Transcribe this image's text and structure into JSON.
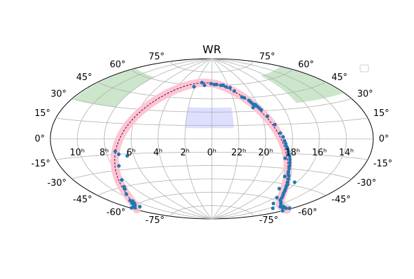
{
  "chart_data": {
    "type": "scatter",
    "projection": "aitoff",
    "title": "WR",
    "xlabel": "",
    "ylabel": "",
    "grid": true,
    "legend": {
      "placement": "upper right",
      "entries": [
        ""
      ]
    },
    "colors": {
      "points": "#1f77b4",
      "galactic_band": "#ffc0cb",
      "galactic_plane": "#4b0082",
      "field_regions": "#a8d5a8",
      "survey_region": "#c8c8ff",
      "grid": "#b0b0b0"
    },
    "lat_ticks": [
      "75°",
      "60°",
      "45°",
      "30°",
      "15°",
      "0°",
      "-15°",
      "-30°",
      "-45°",
      "-60°",
      "-75°"
    ],
    "lon_ticks": [
      "10ʰ",
      "8ʰ",
      "6ʰ",
      "4ʰ",
      "2ʰ",
      "0ʰ",
      "22ʰ",
      "20ʰ",
      "18ʰ",
      "16ʰ",
      "14ʰ"
    ],
    "lat_tick_values": [
      75,
      60,
      45,
      30,
      15,
      0,
      -15,
      -30,
      -45,
      -60,
      -75
    ],
    "lon_tick_values": [
      150,
      120,
      90,
      60,
      30,
      0,
      -30,
      -60,
      -90,
      -120,
      -150
    ],
    "survey_region": {
      "lon_min": -25,
      "lon_max": 30,
      "lat_min": 12,
      "lat_max": 35
    },
    "field_regions": [
      {
        "lon_min": 120,
        "lon_max": 178,
        "lat_min": 30,
        "lat_max": 62
      },
      {
        "lon_min": -178,
        "lon_max": -110,
        "lat_min": 35,
        "lat_max": 65
      }
    ],
    "points": [
      {
        "ra_h": 0.1,
        "dec": 62
      },
      {
        "ra_h": 23.7,
        "dec": 61
      },
      {
        "ra_h": 23.4,
        "dec": 61
      },
      {
        "ra_h": 0.9,
        "dec": 60
      },
      {
        "ra_h": 1.3,
        "dec": 63
      },
      {
        "ra_h": 2.1,
        "dec": 58
      },
      {
        "ra_h": 22.9,
        "dec": 60
      },
      {
        "ra_h": 22.6,
        "dec": 60
      },
      {
        "ra_h": 22.3,
        "dec": 58
      },
      {
        "ra_h": 21.9,
        "dec": 57
      },
      {
        "ra_h": 21.6,
        "dec": 53
      },
      {
        "ra_h": 21.1,
        "dec": 46
      },
      {
        "ra_h": 20.9,
        "dec": 45
      },
      {
        "ra_h": 20.6,
        "dec": 42
      },
      {
        "ra_h": 20.5,
        "dec": 40
      },
      {
        "ra_h": 20.4,
        "dec": 38
      },
      {
        "ra_h": 20.3,
        "dec": 36
      },
      {
        "ra_h": 20.2,
        "dec": 36
      },
      {
        "ra_h": 20.1,
        "dec": 35
      },
      {
        "ra_h": 20.2,
        "dec": 37
      },
      {
        "ra_h": 20.0,
        "dec": 33
      },
      {
        "ra_h": 19.9,
        "dec": 31
      },
      {
        "ra_h": 20.5,
        "dec": 34
      },
      {
        "ra_h": 19.6,
        "dec": 24
      },
      {
        "ra_h": 19.2,
        "dec": 15
      },
      {
        "ra_h": 18.9,
        "dec": 6
      },
      {
        "ra_h": 18.7,
        "dec": 2
      },
      {
        "ra_h": 18.6,
        "dec": -2
      },
      {
        "ra_h": 18.5,
        "dec": -5
      },
      {
        "ra_h": 18.4,
        "dec": -8
      },
      {
        "ra_h": 18.3,
        "dec": -10
      },
      {
        "ra_h": 18.2,
        "dec": -13
      },
      {
        "ra_h": 18.1,
        "dec": -16
      },
      {
        "ra_h": 18.0,
        "dec": -18
      },
      {
        "ra_h": 17.9,
        "dec": -21
      },
      {
        "ra_h": 17.8,
        "dec": -24
      },
      {
        "ra_h": 17.7,
        "dec": -27
      },
      {
        "ra_h": 17.6,
        "dec": -30
      },
      {
        "ra_h": 17.5,
        "dec": -33
      },
      {
        "ra_h": 17.4,
        "dec": -35
      },
      {
        "ra_h": 17.2,
        "dec": -37
      },
      {
        "ra_h": 17.0,
        "dec": -40
      },
      {
        "ra_h": 16.8,
        "dec": -43
      },
      {
        "ra_h": 16.6,
        "dec": -45
      },
      {
        "ra_h": 16.5,
        "dec": -47
      },
      {
        "ra_h": 16.3,
        "dec": -49
      },
      {
        "ra_h": 16.1,
        "dec": -51
      },
      {
        "ra_h": 15.9,
        "dec": -53
      },
      {
        "ra_h": 15.6,
        "dec": -55
      },
      {
        "ra_h": 15.3,
        "dec": -57
      },
      {
        "ra_h": 15.0,
        "dec": -59
      },
      {
        "ra_h": 14.6,
        "dec": -60
      },
      {
        "ra_h": 14.2,
        "dec": -61
      },
      {
        "ra_h": 13.8,
        "dec": -62
      },
      {
        "ra_h": 13.4,
        "dec": -63
      },
      {
        "ra_h": 13.1,
        "dec": -62
      },
      {
        "ra_h": 12.8,
        "dec": -63
      },
      {
        "ra_h": 12.5,
        "dec": -62
      },
      {
        "ra_h": 12.2,
        "dec": -61
      },
      {
        "ra_h": 11.9,
        "dec": -60
      },
      {
        "ra_h": 11.6,
        "dec": -61
      },
      {
        "ra_h": 11.3,
        "dec": -60
      },
      {
        "ra_h": 11.0,
        "dec": -60
      },
      {
        "ra_h": 10.8,
        "dec": -59
      },
      {
        "ra_h": 10.7,
        "dec": -58
      },
      {
        "ra_h": 10.6,
        "dec": -59
      },
      {
        "ra_h": 10.4,
        "dec": -58
      },
      {
        "ra_h": 10.2,
        "dec": -57
      },
      {
        "ra_h": 10.3,
        "dec": -56
      },
      {
        "ra_h": 9.5,
        "dec": -51
      },
      {
        "ra_h": 8.9,
        "dec": -47
      },
      {
        "ra_h": 8.7,
        "dec": -45
      },
      {
        "ra_h": 8.2,
        "dec": -39
      },
      {
        "ra_h": 7.5,
        "dec": -26
      },
      {
        "ra_h": 7.3,
        "dec": -12
      },
      {
        "ra_h": 6.5,
        "dec": -17
      },
      {
        "ra_h": 7.1,
        "dec": -15
      },
      {
        "ra_h": 18.3,
        "dec": -20
      },
      {
        "ra_h": 17.5,
        "dec": -38
      },
      {
        "ra_h": 16.9,
        "dec": -50
      },
      {
        "ra_h": 15.8,
        "dec": -58
      },
      {
        "ra_h": 14.9,
        "dec": -63
      },
      {
        "ra_h": 13.6,
        "dec": -66
      },
      {
        "ra_h": 12.0,
        "dec": -64
      },
      {
        "ra_h": 10.9,
        "dec": -62
      },
      {
        "ra_h": 16.2,
        "dec": -42
      }
    ]
  }
}
